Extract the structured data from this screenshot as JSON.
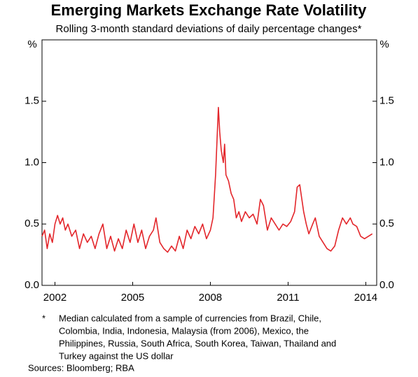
{
  "chart_data": {
    "type": "line",
    "title": "Emerging Markets Exchange Rate Volatility",
    "subtitle": "Rolling 3-month standard deviations of daily percentage changes*",
    "y_label": "%",
    "x": [
      2002.0,
      2002.1,
      2002.2,
      2002.3,
      2002.4,
      2002.5,
      2002.6,
      2002.7,
      2002.8,
      2002.9,
      2003.0,
      2003.15,
      2003.3,
      2003.45,
      2003.6,
      2003.75,
      2003.9,
      2004.05,
      2004.2,
      2004.35,
      2004.5,
      2004.65,
      2004.8,
      2004.95,
      2005.1,
      2005.25,
      2005.4,
      2005.55,
      2005.7,
      2005.85,
      2006.0,
      2006.15,
      2006.3,
      2006.4,
      2006.55,
      2006.7,
      2006.85,
      2007.0,
      2007.15,
      2007.3,
      2007.45,
      2007.6,
      2007.75,
      2007.9,
      2008.05,
      2008.2,
      2008.35,
      2008.5,
      2008.6,
      2008.7,
      2008.78,
      2008.81,
      2008.86,
      2008.92,
      2009.0,
      2009.05,
      2009.1,
      2009.2,
      2009.3,
      2009.4,
      2009.5,
      2009.6,
      2009.7,
      2009.85,
      2010.0,
      2010.15,
      2010.3,
      2010.43,
      2010.55,
      2010.7,
      2010.85,
      2011.0,
      2011.15,
      2011.3,
      2011.45,
      2011.6,
      2011.75,
      2011.85,
      2011.95,
      2012.1,
      2012.2,
      2012.3,
      2012.45,
      2012.55,
      2012.7,
      2012.85,
      2013.0,
      2013.15,
      2013.3,
      2013.45,
      2013.6,
      2013.75,
      2013.9,
      2014.0,
      2014.15,
      2014.3,
      2014.45,
      2014.6,
      2014.75
    ],
    "values": [
      0.4,
      0.45,
      0.3,
      0.42,
      0.35,
      0.5,
      0.57,
      0.5,
      0.55,
      0.45,
      0.5,
      0.4,
      0.45,
      0.3,
      0.42,
      0.35,
      0.4,
      0.3,
      0.42,
      0.5,
      0.3,
      0.4,
      0.28,
      0.38,
      0.3,
      0.45,
      0.35,
      0.5,
      0.35,
      0.45,
      0.3,
      0.4,
      0.45,
      0.55,
      0.35,
      0.3,
      0.27,
      0.32,
      0.28,
      0.4,
      0.3,
      0.45,
      0.38,
      0.48,
      0.42,
      0.5,
      0.38,
      0.45,
      0.55,
      0.9,
      1.3,
      1.45,
      1.25,
      1.1,
      1.0,
      1.15,
      0.9,
      0.85,
      0.75,
      0.7,
      0.55,
      0.6,
      0.52,
      0.6,
      0.55,
      0.58,
      0.5,
      0.7,
      0.65,
      0.45,
      0.55,
      0.5,
      0.45,
      0.5,
      0.48,
      0.52,
      0.6,
      0.8,
      0.82,
      0.6,
      0.5,
      0.42,
      0.5,
      0.55,
      0.4,
      0.35,
      0.3,
      0.28,
      0.32,
      0.45,
      0.55,
      0.5,
      0.55,
      0.5,
      0.48,
      0.4,
      0.38,
      0.4,
      0.42
    ],
    "color": "#e3262b",
    "xlim": [
      2002,
      2014.92
    ],
    "xticks": [
      {
        "value": 2002.5,
        "label": "2002"
      },
      {
        "value": 2005.5,
        "label": "2005"
      },
      {
        "value": 2008.5,
        "label": "2008"
      },
      {
        "value": 2011.5,
        "label": "2011"
      },
      {
        "value": 2014.5,
        "label": "2014"
      }
    ],
    "ylim": [
      0,
      2
    ],
    "yticks": [
      {
        "value": 0,
        "label": "0.0"
      },
      0.5,
      {
        "value": 1,
        "label": "1.0"
      },
      1.5
    ],
    "grid": false,
    "notes": {
      "marker": "*",
      "lines": [
        "Median calculated from a sample of currencies from Brazil, Chile,",
        "Colombia, India, Indonesia, Malaysia (from 2006), Mexico, the",
        "Philippines, Russia, South Africa, South Korea, Taiwan, Thailand and",
        "Turkey against the US dollar"
      ]
    },
    "source": "Sources:  Bloomberg; RBA"
  }
}
